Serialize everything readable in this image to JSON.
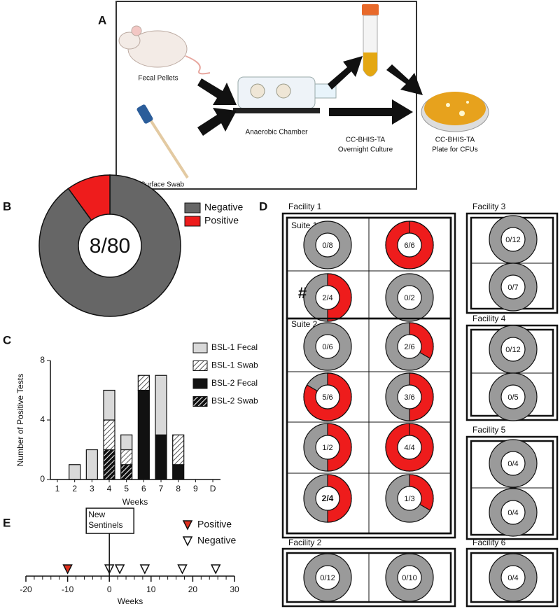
{
  "panel_labels": [
    "A",
    "B",
    "C",
    "D",
    "E"
  ],
  "panel_a": {
    "fecal": "Fecal Pellets",
    "swab": "Surface Swab",
    "chamber": "Anaerobic Chamber",
    "culture": [
      "CC-BHIS-TA",
      "Overnight Culture"
    ],
    "plate": [
      "CC-BHIS-TA",
      "Plate for CFUs"
    ]
  },
  "chart_data": [
    {
      "type": "donut",
      "categories": [
        "Negative",
        "Positive"
      ],
      "values": [
        72,
        8
      ],
      "colors": [
        "#666666",
        "#ee1c1c"
      ],
      "center_label": "8/80"
    },
    {
      "type": "stacked_bar",
      "ylabel": "Number of Positive Tests",
      "xlabel": "Weeks",
      "categories": [
        "1",
        "2",
        "3",
        "4",
        "5",
        "6",
        "7",
        "8",
        "9",
        "D"
      ],
      "series": [
        {
          "name": "BSL-1 Fecal",
          "color": "#d9d9d9",
          "values": [
            0,
            1,
            2,
            2,
            1,
            0,
            4,
            0,
            0,
            0
          ]
        },
        {
          "name": "BSL-1 Swab",
          "color": "#ffffff",
          "hatch": "#555555",
          "values": [
            0,
            0,
            0,
            2,
            1,
            1,
            0,
            2,
            0,
            0
          ]
        },
        {
          "name": "BSL-2 Fecal",
          "color": "#111111",
          "values": [
            0,
            0,
            0,
            0,
            0,
            6,
            3,
            1,
            0,
            0
          ]
        },
        {
          "name": "BSL-2 Swab",
          "color": "#111111",
          "hatch": "#ffffff",
          "values": [
            0,
            0,
            0,
            2,
            1,
            0,
            0,
            0,
            0,
            0
          ]
        }
      ],
      "ylim": [
        0,
        8
      ],
      "yticks": [
        0,
        4,
        8
      ]
    },
    {
      "type": "timeline",
      "xlabel": "Weeks",
      "annotation": [
        "New",
        "Sentinels"
      ],
      "annotation_x": 0,
      "series": [
        {
          "name": "Positive",
          "color": "#e0301e",
          "x": [
            -10
          ]
        },
        {
          "name": "Negative",
          "color": "#ffffff",
          "x": [
            0,
            2.5,
            8.5,
            17.5,
            25.5
          ]
        }
      ],
      "xlim": [
        -20,
        30
      ],
      "xticks": [
        -20,
        -10,
        0,
        10,
        20,
        30
      ]
    }
  ],
  "panel_d": {
    "facilities": [
      {
        "name": "Facility 1",
        "suites": [
          {
            "name": "Suite 1",
            "cells": [
              {
                "label": "0/8",
                "positive": 0,
                "total": 8
              },
              {
                "label": "6/6",
                "positive": 6,
                "total": 6
              },
              {
                "label": "2/4",
                "positive": 2,
                "total": 4,
                "note": "#"
              },
              {
                "label": "0/2",
                "positive": 0,
                "total": 2
              }
            ]
          },
          {
            "name": "Suite 2",
            "cells": [
              {
                "label": "0/6",
                "positive": 0,
                "total": 6
              },
              {
                "label": "2/6",
                "positive": 2,
                "total": 6
              },
              {
                "label": "5/6",
                "positive": 5,
                "total": 6
              },
              {
                "label": "3/6",
                "positive": 3,
                "total": 6
              },
              {
                "label": "1/2",
                "positive": 1,
                "total": 2
              },
              {
                "label": "4/4",
                "positive": 4,
                "total": 4
              },
              {
                "label": "2/4",
                "positive": 2,
                "total": 4,
                "bold": true
              },
              {
                "label": "1/3",
                "positive": 1,
                "total": 3
              }
            ]
          }
        ]
      },
      {
        "name": "Facility 2",
        "cells": [
          {
            "label": "0/12",
            "positive": 0,
            "total": 12
          },
          {
            "label": "0/10",
            "positive": 0,
            "total": 10
          }
        ]
      },
      {
        "name": "Facility 3",
        "cells": [
          {
            "label": "0/12",
            "positive": 0,
            "total": 12
          },
          {
            "label": "0/7",
            "positive": 0,
            "total": 7
          }
        ]
      },
      {
        "name": "Facility 4",
        "cells": [
          {
            "label": "0/12",
            "positive": 0,
            "total": 12
          },
          {
            "label": "0/5",
            "positive": 0,
            "total": 5
          }
        ]
      },
      {
        "name": "Facility 5",
        "cells": [
          {
            "label": "0/4",
            "positive": 0,
            "total": 4
          },
          {
            "label": "0/4",
            "positive": 0,
            "total": 4
          }
        ]
      },
      {
        "name": "Facility 6",
        "cells": [
          {
            "label": "0/4",
            "positive": 0,
            "total": 4
          }
        ]
      }
    ],
    "positive_color": "#ee1c1c",
    "negative_color": "#9a9a9a"
  }
}
